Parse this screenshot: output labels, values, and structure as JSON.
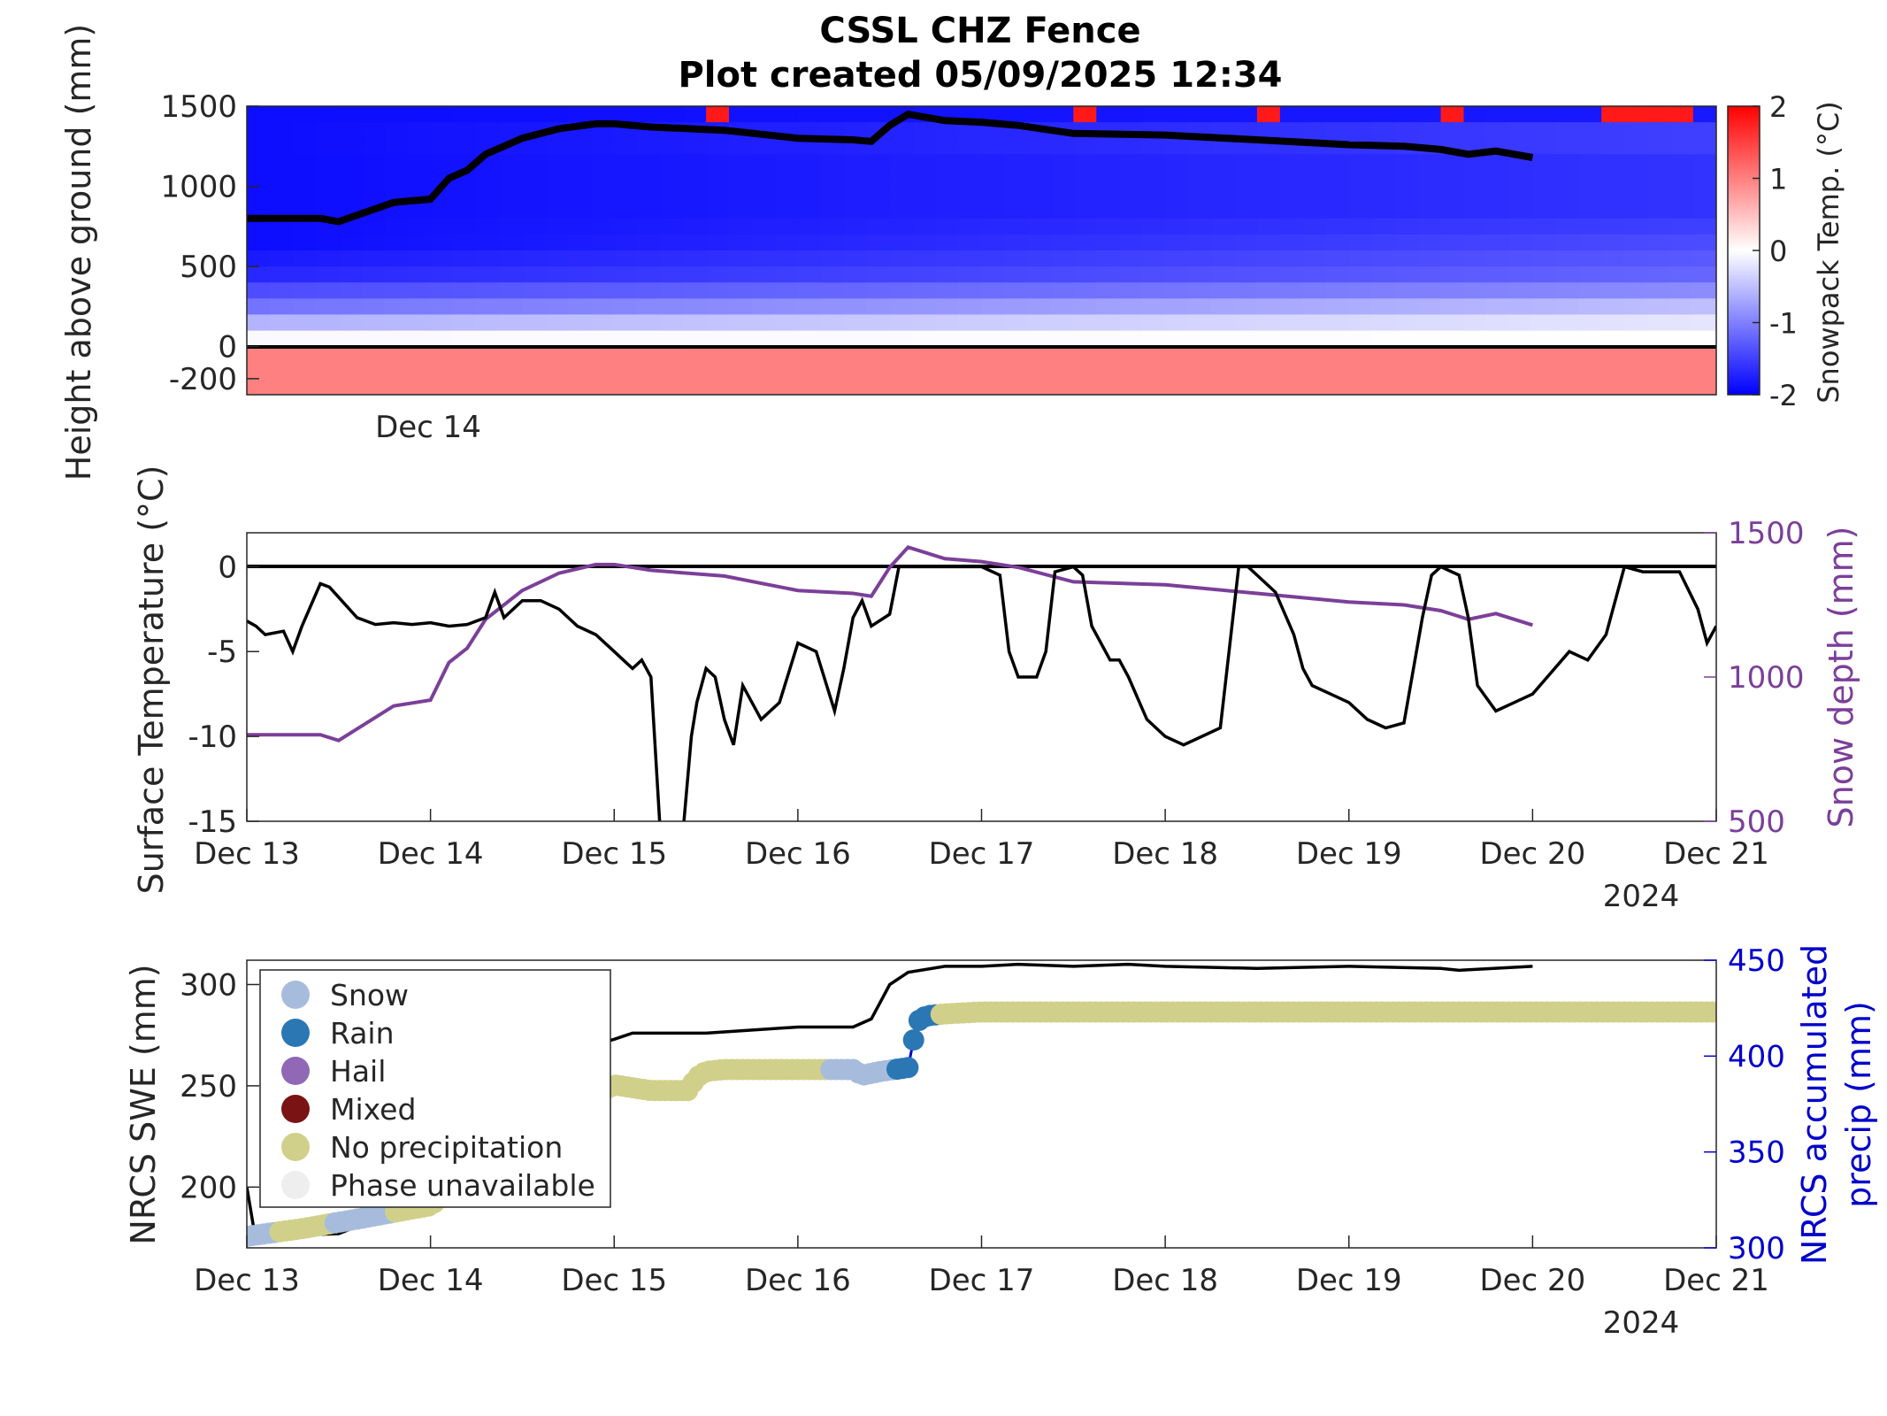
{
  "title": {
    "line1": "CSSL CHZ Fence",
    "line2": "Plot created 05/09/2025 12:34"
  },
  "colors": {
    "snow_depth": "#7b3f99",
    "precip_axis": "#0000cc",
    "legend_snow": "#a7bcdc",
    "legend_rain": "#2a77b4",
    "legend_hail": "#9068b6",
    "legend_mixed": "#7a1313",
    "legend_noprecip": "#d0d08a",
    "legend_unavailable": "#eeeeee"
  },
  "chart_data": [
    {
      "type": "heatmap",
      "ylabel": "Height above ground (mm)",
      "colorbar_label": "Snowpack Temp. (°C)",
      "colorbar_ticks": [
        "2",
        "1",
        "0",
        "-1",
        "-2"
      ],
      "clim": [
        -2,
        2
      ],
      "ylim": [
        -300,
        1500
      ],
      "ytick_labels": [
        "1500",
        "1000",
        "500",
        "0",
        "-200"
      ],
      "xtick_labels": [
        "Dec 14"
      ],
      "rows_mm": [
        1450,
        1350,
        1250,
        1150,
        1050,
        950,
        850,
        750,
        650,
        550,
        450,
        350,
        250,
        150,
        50,
        -50,
        -150,
        -250
      ],
      "row_temp_start": [
        -1.9,
        -1.9,
        -1.9,
        -1.9,
        -1.9,
        -1.9,
        -1.9,
        -1.9,
        -1.9,
        -1.8,
        -1.7,
        -1.4,
        -1.1,
        -0.6,
        -0.05,
        1.0,
        1.0,
        1.0
      ],
      "row_temp_end": [
        -1.8,
        -1.5,
        -1.5,
        -1.6,
        -1.6,
        -1.6,
        -1.6,
        -1.5,
        -1.4,
        -1.3,
        -1.2,
        -0.9,
        -0.5,
        -0.2,
        0.0,
        1.0,
        1.0,
        1.0
      ],
      "warm_events": [
        {
          "start": "Dec 15 12:00",
          "end": "Dec 15 16:00",
          "temp": 1.8
        },
        {
          "start": "Dec 17 12:00",
          "end": "Dec 17 16:00",
          "temp": 1.8
        },
        {
          "start": "Dec 18 12:00",
          "end": "Dec 18 16:00",
          "temp": 1.8
        },
        {
          "start": "Dec 19 11:00",
          "end": "Dec 19 15:00",
          "temp": 1.8
        },
        {
          "start": "Dec 20 10:00",
          "end": "Dec 20 20:00",
          "temp": 1.8
        }
      ],
      "snow_depth_series": {
        "x_days": [
          13.0,
          13.4,
          13.5,
          13.8,
          14.0,
          14.1,
          14.2,
          14.3,
          14.5,
          14.7,
          14.9,
          15.0,
          15.2,
          15.6,
          16.0,
          16.3,
          16.4,
          16.5,
          16.6,
          16.8,
          17.0,
          17.2,
          17.5,
          18.0,
          18.5,
          19.0,
          19.3,
          19.5,
          19.6,
          19.65,
          19.8,
          20.0
        ],
        "y_mm": [
          800,
          800,
          780,
          900,
          920,
          1050,
          1100,
          1200,
          1300,
          1360,
          1390,
          1390,
          1370,
          1350,
          1300,
          1290,
          1280,
          1380,
          1450,
          1410,
          1400,
          1380,
          1330,
          1320,
          1290,
          1260,
          1250,
          1230,
          1210,
          1200,
          1220,
          1180
        ]
      }
    },
    {
      "type": "line",
      "ylabel": "Surface Temperature (°C)",
      "y2label": "Snow depth (mm)",
      "ylim": [
        -15,
        2
      ],
      "y2lim": [
        500,
        1500
      ],
      "xlim": [
        "Dec 13",
        "Dec 21"
      ],
      "ytick_labels": [
        "0",
        "-5",
        "-10",
        "-15"
      ],
      "y2tick_labels": [
        "1500",
        "1000",
        "500"
      ],
      "xtick_labels": [
        "Dec 13",
        "Dec 14",
        "Dec 15",
        "Dec 16",
        "Dec 17",
        "Dec 18",
        "Dec 19",
        "Dec 20",
        "Dec 21"
      ],
      "year_label": "2024",
      "reference_line_y": 0,
      "series": [
        {
          "name": "Surface Temperature",
          "x_days": [
            13.0,
            13.05,
            13.1,
            13.2,
            13.25,
            13.3,
            13.4,
            13.45,
            13.6,
            13.7,
            13.8,
            13.9,
            14.0,
            14.1,
            14.2,
            14.3,
            14.35,
            14.4,
            14.5,
            14.6,
            14.7,
            14.8,
            14.9,
            15.0,
            15.05,
            15.1,
            15.15,
            15.2,
            15.25,
            15.3,
            15.35,
            15.38,
            15.42,
            15.45,
            15.5,
            15.55,
            15.6,
            15.65,
            15.7,
            15.8,
            15.9,
            16.0,
            16.1,
            16.2,
            16.25,
            16.3,
            16.35,
            16.4,
            16.5,
            16.55,
            16.6,
            16.8,
            17.0,
            17.1,
            17.15,
            17.2,
            17.3,
            17.35,
            17.4,
            17.5,
            17.55,
            17.6,
            17.7,
            17.75,
            17.8,
            17.9,
            18.0,
            18.1,
            18.2,
            18.3,
            18.4,
            18.45,
            18.5,
            18.6,
            18.7,
            18.75,
            18.8,
            18.9,
            19.0,
            19.1,
            19.2,
            19.3,
            19.4,
            19.45,
            19.5,
            19.6,
            19.65,
            19.7,
            19.8,
            19.9,
            20.0,
            20.2,
            20.3,
            20.4,
            20.5,
            20.6,
            20.7,
            20.8,
            20.9,
            20.95,
            21.0
          ],
          "y": [
            -3.2,
            -3.5,
            -4.0,
            -3.8,
            -5.0,
            -3.5,
            -1.0,
            -1.2,
            -3.0,
            -3.4,
            -3.3,
            -3.4,
            -3.3,
            -3.5,
            -3.4,
            -3.0,
            -1.5,
            -3.0,
            -2.0,
            -2.0,
            -2.5,
            -3.5,
            -4.0,
            -5.0,
            -5.5,
            -6.0,
            -5.5,
            -6.5,
            -15.5,
            -16.0,
            -15.5,
            -15.0,
            -10.0,
            -8.0,
            -6.0,
            -6.5,
            -9.0,
            -10.5,
            -7.0,
            -9.0,
            -8.0,
            -4.5,
            -5.0,
            -8.5,
            -6.0,
            -3.0,
            -2.0,
            -3.5,
            -2.8,
            0.0,
            0.0,
            0.0,
            0.0,
            -0.5,
            -5.0,
            -6.5,
            -6.5,
            -5.0,
            -0.3,
            0.0,
            -0.5,
            -3.5,
            -5.5,
            -5.5,
            -6.5,
            -9.0,
            -10.0,
            -10.5,
            -10.0,
            -9.5,
            0.0,
            0.0,
            -0.5,
            -1.5,
            -4.0,
            -6.0,
            -7.0,
            -7.5,
            -8.0,
            -9.0,
            -9.5,
            -9.2,
            -3.0,
            -0.5,
            0.0,
            -0.5,
            -3.0,
            -7.0,
            -8.5,
            -8.0,
            -7.5,
            -5.0,
            -5.5,
            -4.0,
            0.0,
            -0.3,
            -0.3,
            -0.3,
            -2.5,
            -4.5,
            -3.5
          ]
        },
        {
          "name": "Snow depth",
          "axis": "right",
          "x_days": [
            13.0,
            13.4,
            13.5,
            13.8,
            14.0,
            14.1,
            14.2,
            14.3,
            14.5,
            14.7,
            14.9,
            15.0,
            15.2,
            15.6,
            16.0,
            16.3,
            16.4,
            16.5,
            16.6,
            16.8,
            17.0,
            17.2,
            17.5,
            18.0,
            18.5,
            19.0,
            19.3,
            19.5,
            19.6,
            19.65,
            19.8,
            20.0
          ],
          "y": [
            800,
            800,
            780,
            900,
            920,
            1050,
            1100,
            1200,
            1300,
            1360,
            1390,
            1390,
            1370,
            1350,
            1300,
            1290,
            1280,
            1380,
            1450,
            1410,
            1400,
            1380,
            1330,
            1320,
            1290,
            1260,
            1250,
            1230,
            1210,
            1200,
            1220,
            1180
          ]
        }
      ]
    },
    {
      "type": "scatter",
      "ylabel": "NRCS SWE (mm)",
      "y2label_line1": "NRCS accumulated",
      "y2label_line2": "precip (mm)",
      "ylim": [
        170,
        312
      ],
      "y2lim": [
        300,
        450
      ],
      "xlim": [
        "Dec 13",
        "Dec 21"
      ],
      "ytick_labels": [
        "300",
        "250",
        "200"
      ],
      "y2tick_labels": [
        "450",
        "400",
        "350",
        "300"
      ],
      "xtick_labels": [
        "Dec 13",
        "Dec 14",
        "Dec 15",
        "Dec 16",
        "Dec 17",
        "Dec 18",
        "Dec 19",
        "Dec 20",
        "Dec 21"
      ],
      "year_label": "2024",
      "legend": {
        "position": "top-left",
        "entries": [
          "Snow",
          "Rain",
          "Hail",
          "Mixed",
          "No precipitation",
          "Phase unavailable"
        ]
      },
      "swe_series": {
        "x_days": [
          13.0,
          13.05,
          13.2,
          13.5,
          14.0,
          14.2,
          14.5,
          14.8,
          15.0,
          15.1,
          15.5,
          16.0,
          16.3,
          16.4,
          16.5,
          16.6,
          16.8,
          17.0,
          17.2,
          17.5,
          17.8,
          18.0,
          18.5,
          19.0,
          19.5,
          19.6,
          20.0
        ],
        "y": [
          200,
          173,
          176,
          177,
          195,
          230,
          250,
          268,
          273,
          276,
          276,
          279,
          279,
          283,
          300,
          306,
          309,
          309,
          310,
          309,
          310,
          309,
          308,
          309,
          308,
          307,
          309
        ]
      },
      "precip_series": {
        "x_days": [
          13.0,
          13.3,
          13.6,
          14.0,
          14.3,
          14.6,
          15.0,
          15.2,
          15.4,
          15.45,
          15.5,
          15.6,
          16.0,
          16.3,
          16.35,
          16.45,
          16.6,
          16.65,
          16.7,
          16.8,
          17.0,
          17.5,
          18.0,
          19.0,
          20.0,
          21.0
        ],
        "y": [
          306,
          310,
          315,
          322,
          345,
          365,
          385,
          382,
          382,
          389,
          392,
          393,
          393,
          393,
          390,
          392,
          394,
          418,
          421,
          422,
          423,
          423,
          423,
          423,
          423,
          423
        ],
        "phase": [
          "snow",
          "noprecip",
          "snow",
          "noprecip",
          "noprecip",
          "noprecip",
          "noprecip",
          "noprecip",
          "noprecip",
          "noprecip",
          "noprecip",
          "noprecip",
          "noprecip",
          "snow",
          "snow",
          "snow",
          "rain",
          "rain",
          "rain",
          "noprecip",
          "noprecip",
          "noprecip",
          "noprecip",
          "noprecip",
          "noprecip",
          "noprecip"
        ]
      }
    }
  ]
}
